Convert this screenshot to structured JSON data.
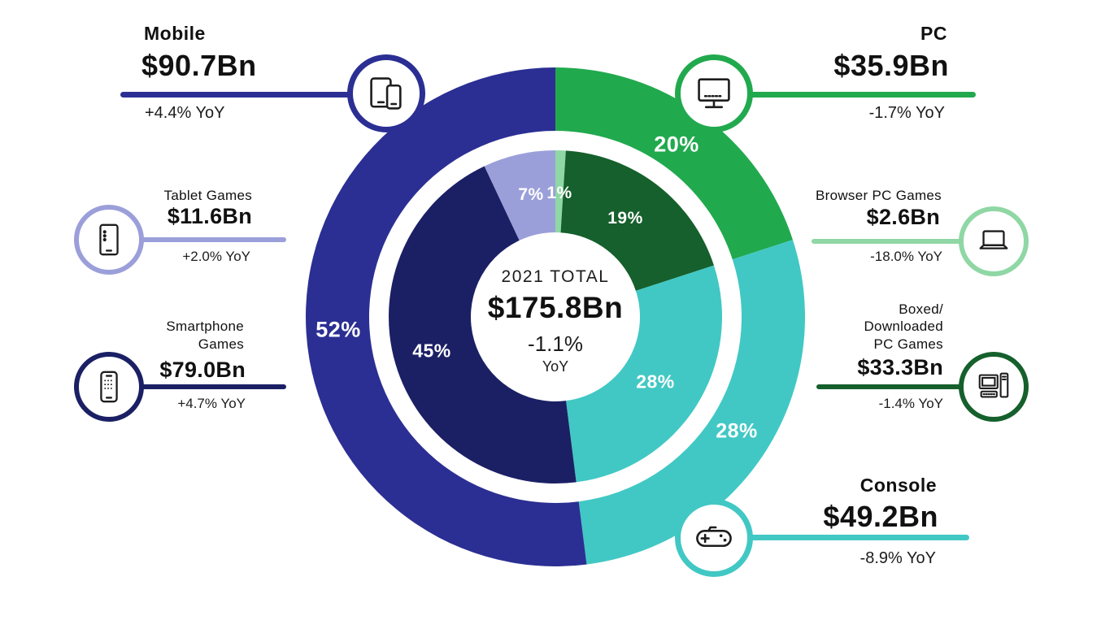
{
  "chart_data": {
    "type": "pie",
    "subtype": "double-ring-donut",
    "center": {
      "title": "2021 TOTAL",
      "total": "$175.8Bn",
      "yoy": "-1.1%",
      "yoy_suffix": "YoY"
    },
    "outer_ring": {
      "segments": [
        {
          "name": "PC",
          "pct": 20,
          "label": "20%",
          "color": "#21a94e"
        },
        {
          "name": "Console",
          "pct": 28,
          "label": "28%",
          "color": "#41c8c4"
        },
        {
          "name": "Mobile",
          "pct": 52,
          "label": "52%",
          "color": "#2b2f93"
        }
      ]
    },
    "inner_ring": {
      "segments": [
        {
          "name": "Browser PC Games",
          "pct": 1,
          "label": "1%",
          "color": "#8fd7a5"
        },
        {
          "name": "Boxed/Downloaded PC Games",
          "pct": 19,
          "label": "19%",
          "color": "#15602c"
        },
        {
          "name": "Console",
          "pct": 28,
          "label": "28%",
          "color": "#41c8c4"
        },
        {
          "name": "Smartphone Games",
          "pct": 45,
          "label": "45%",
          "color": "#1b2065"
        },
        {
          "name": "Tablet Games",
          "pct": 7,
          "label": "7%",
          "color": "#9b9fd9"
        }
      ]
    },
    "callouts": [
      {
        "id": "mobile",
        "title": "Mobile",
        "value": "$90.7Bn",
        "yoy": "+4.4% YoY",
        "color": "#2b2f93"
      },
      {
        "id": "tablet",
        "title": "Tablet Games",
        "value": "$11.6Bn",
        "yoy": "+2.0% YoY",
        "color": "#9b9fd9"
      },
      {
        "id": "smartphone",
        "title": "Smartphone Games",
        "value": "$79.0Bn",
        "yoy": "+4.7% YoY",
        "color": "#1b2065"
      },
      {
        "id": "pc",
        "title": "PC",
        "value": "$35.9Bn",
        "yoy": "-1.7% YoY",
        "color": "#21a94e"
      },
      {
        "id": "browser_pc",
        "title": "Browser PC Games",
        "value": "$2.6Bn",
        "yoy": "-18.0% YoY",
        "color": "#8fd7a5"
      },
      {
        "id": "boxed_pc",
        "title": "Boxed/\nDownloaded\nPC Games",
        "value": "$33.3Bn",
        "yoy": "-1.4% YoY",
        "color": "#15602c"
      },
      {
        "id": "console",
        "title": "Console",
        "value": "$49.2Bn",
        "yoy": "-8.9% YoY",
        "color": "#41c8c4"
      }
    ]
  }
}
